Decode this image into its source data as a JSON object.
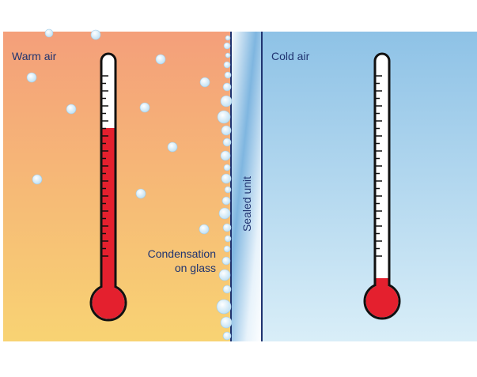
{
  "warm_side": {
    "label": "Warm air",
    "condensation_label": [
      "Condensation",
      "on glass"
    ]
  },
  "cold_side": {
    "label": "Cold air"
  },
  "glass": {
    "label": "Sealed unit"
  }
}
